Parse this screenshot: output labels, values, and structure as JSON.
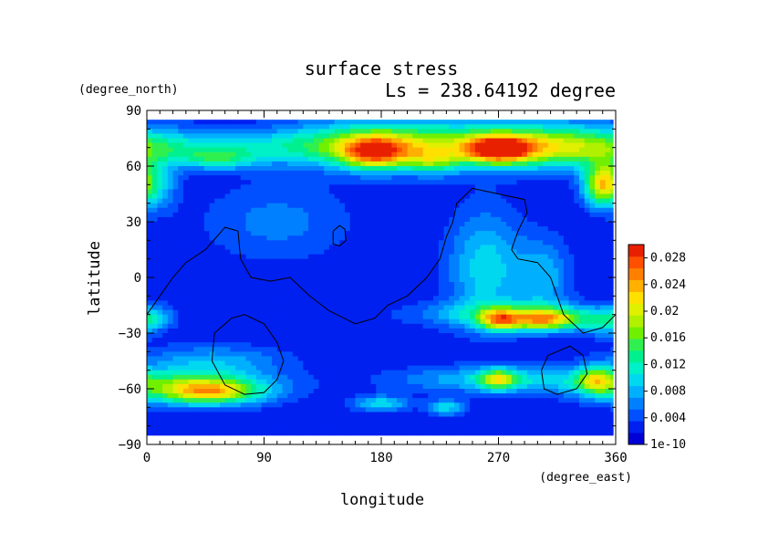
{
  "chart_data": {
    "type": "heatmap",
    "title": "surface stress",
    "subtitle": "Ls = 238.64192 degree",
    "xlabel": "longitude",
    "ylabel": "latitude",
    "xunits": "(degree_east)",
    "yunits": "(degree_north)",
    "xlim": [
      0,
      360
    ],
    "ylim": [
      -90,
      90
    ],
    "xticks": [
      "0",
      "90",
      "180",
      "270",
      "360"
    ],
    "yticks": [
      "90",
      "60",
      "30",
      "0",
      "−30",
      "−60",
      "−90"
    ],
    "colorbar": {
      "min": 0,
      "max": 0.03,
      "labels": [
        "0.028",
        "0.024",
        "0.02",
        "0.016",
        "0.012",
        "0.008",
        "0.004",
        "1e-10"
      ],
      "colors": [
        "#0000d6",
        "#0020f0",
        "#0050ff",
        "#0080ff",
        "#00b0ff",
        "#00d8f0",
        "#00f0c8",
        "#00f090",
        "#30f050",
        "#70f000",
        "#b0f000",
        "#e0f000",
        "#ffe000",
        "#ffb000",
        "#ff8000",
        "#ff5000",
        "#e82000"
      ]
    },
    "background_value": 0.002,
    "features": [
      {
        "lon": 60,
        "lat": 70,
        "sx": 90,
        "sy": 6,
        "v": 0.006
      },
      {
        "lon": 170,
        "lat": 72,
        "sx": 50,
        "sy": 9,
        "v": 0.01
      },
      {
        "lon": 265,
        "lat": 72,
        "sx": 70,
        "sy": 9,
        "v": 0.01
      },
      {
        "lon": 320,
        "lat": 70,
        "sx": 40,
        "sy": 8,
        "v": 0.008
      },
      {
        "lon": 55,
        "lat": 64,
        "sx": 20,
        "sy": 4,
        "v": 0.008
      },
      {
        "lon": 175,
        "lat": 67,
        "sx": 18,
        "sy": 6,
        "v": 0.016
      },
      {
        "lon": 270,
        "lat": 69,
        "sx": 18,
        "sy": 5,
        "v": 0.02
      },
      {
        "lon": 220,
        "lat": 63,
        "sx": 15,
        "sy": 5,
        "v": 0.008
      },
      {
        "lon": 350,
        "lat": 50,
        "sx": 10,
        "sy": 8,
        "v": 0.02
      },
      {
        "lon": 10,
        "lat": 50,
        "sx": 10,
        "sy": 10,
        "v": 0.006
      },
      {
        "lon": 260,
        "lat": 5,
        "sx": 20,
        "sy": 22,
        "v": 0.008
      },
      {
        "lon": 305,
        "lat": 0,
        "sx": 15,
        "sy": 15,
        "v": 0.006
      },
      {
        "lon": 280,
        "lat": -20,
        "sx": 50,
        "sy": 5,
        "v": 0.008
      },
      {
        "lon": 305,
        "lat": -23,
        "sx": 22,
        "sy": 4,
        "v": 0.016
      },
      {
        "lon": 270,
        "lat": -23,
        "sx": 10,
        "sy": 4,
        "v": 0.012
      },
      {
        "lon": 50,
        "lat": -45,
        "sx": 40,
        "sy": 6,
        "v": 0.006
      },
      {
        "lon": 40,
        "lat": -60,
        "sx": 40,
        "sy": 6,
        "v": 0.016
      },
      {
        "lon": 50,
        "lat": -62,
        "sx": 22,
        "sy": 4,
        "v": 0.008
      },
      {
        "lon": 280,
        "lat": -55,
        "sx": 60,
        "sy": 5,
        "v": 0.008
      },
      {
        "lon": 270,
        "lat": -55,
        "sx": 10,
        "sy": 4,
        "v": 0.012
      },
      {
        "lon": 345,
        "lat": -55,
        "sx": 10,
        "sy": 5,
        "v": 0.012
      },
      {
        "lon": 180,
        "lat": -68,
        "sx": 15,
        "sy": 3,
        "v": 0.008
      },
      {
        "lon": 230,
        "lat": -70,
        "sx": 10,
        "sy": 3,
        "v": 0.008
      },
      {
        "lon": 100,
        "lat": 30,
        "sx": 40,
        "sy": 15,
        "v": 0.004
      },
      {
        "lon": 5,
        "lat": -22,
        "sx": 10,
        "sy": 5,
        "v": 0.006
      },
      {
        "lon": 350,
        "lat": -25,
        "sx": 10,
        "sy": 5,
        "v": 0.006
      }
    ],
    "contours": [
      [
        [
          0,
          -20
        ],
        [
          10,
          -10
        ],
        [
          20,
          0
        ],
        [
          30,
          8
        ],
        [
          45,
          15
        ],
        [
          60,
          27
        ],
        [
          70,
          25
        ],
        [
          72,
          10
        ],
        [
          80,
          0
        ],
        [
          95,
          -2
        ],
        [
          110,
          0
        ],
        [
          125,
          -10
        ],
        [
          140,
          -18
        ],
        [
          160,
          -25
        ],
        [
          175,
          -22
        ],
        [
          185,
          -15
        ],
        [
          200,
          -10
        ],
        [
          215,
          0
        ],
        [
          225,
          10
        ],
        [
          230,
          22
        ],
        [
          235,
          30
        ],
        [
          238,
          40
        ],
        [
          250,
          48
        ],
        [
          270,
          45
        ],
        [
          290,
          42
        ],
        [
          292,
          35
        ],
        [
          285,
          25
        ],
        [
          280,
          15
        ],
        [
          285,
          10
        ],
        [
          300,
          8
        ],
        [
          310,
          0
        ],
        [
          315,
          -10
        ],
        [
          320,
          -20
        ],
        [
          335,
          -30
        ],
        [
          350,
          -27
        ],
        [
          360,
          -20
        ]
      ],
      [
        [
          143,
          25
        ],
        [
          148,
          28
        ],
        [
          152,
          26
        ],
        [
          153,
          20
        ],
        [
          148,
          17
        ],
        [
          143,
          18
        ],
        [
          143,
          25
        ]
      ],
      [
        [
          75,
          -20
        ],
        [
          90,
          -25
        ],
        [
          100,
          -35
        ],
        [
          105,
          -45
        ],
        [
          100,
          -55
        ],
        [
          90,
          -62
        ],
        [
          75,
          -63
        ],
        [
          60,
          -58
        ],
        [
          50,
          -45
        ],
        [
          52,
          -30
        ],
        [
          65,
          -22
        ],
        [
          75,
          -20
        ]
      ],
      [
        [
          315,
          -40
        ],
        [
          325,
          -37
        ],
        [
          335,
          -42
        ],
        [
          338,
          -52
        ],
        [
          330,
          -60
        ],
        [
          315,
          -63
        ],
        [
          305,
          -60
        ],
        [
          303,
          -50
        ],
        [
          308,
          -42
        ],
        [
          315,
          -40
        ]
      ]
    ]
  }
}
